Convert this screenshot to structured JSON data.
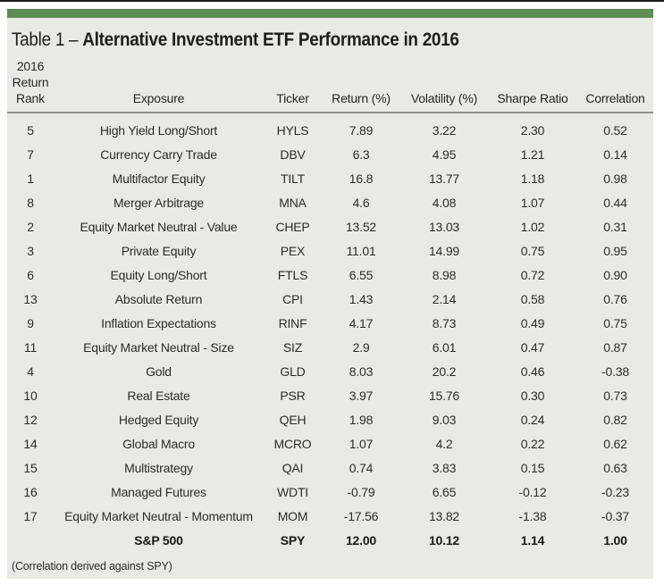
{
  "title": {
    "label": "Table 1 – ",
    "main": "Alternative Investment ETF Performance in 2016"
  },
  "header": {
    "rank_lines": [
      "2016",
      "Return",
      "Rank"
    ],
    "cols": [
      "Exposure",
      "Ticker",
      "Return (%)",
      "Volatility (%)",
      "Sharpe Ratio",
      "Correlation"
    ]
  },
  "chart_data": {
    "type": "table",
    "title": "Table 1 – Alternative Investment ETF Performance in 2016",
    "columns": [
      "2016 Return Rank",
      "Exposure",
      "Ticker",
      "Return (%)",
      "Volatility (%)",
      "Sharpe Ratio",
      "Correlation"
    ],
    "rows": [
      [
        "5",
        "High Yield Long/Short",
        "HYLS",
        "7.89",
        "3.22",
        "2.30",
        "0.52"
      ],
      [
        "7",
        "Currency Carry Trade",
        "DBV",
        "6.3",
        "4.95",
        "1.21",
        "0.14"
      ],
      [
        "1",
        "Multifactor Equity",
        "TILT",
        "16.8",
        "13.77",
        "1.18",
        "0.98"
      ],
      [
        "8",
        "Merger Arbitrage",
        "MNA",
        "4.6",
        "4.08",
        "1.07",
        "0.44"
      ],
      [
        "2",
        "Equity Market Neutral - Value",
        "CHEP",
        "13.52",
        "13.03",
        "1.02",
        "0.31"
      ],
      [
        "3",
        "Private Equity",
        "PEX",
        "11.01",
        "14.99",
        "0.75",
        "0.95"
      ],
      [
        "6",
        "Equity Long/Short",
        "FTLS",
        "6.55",
        "8.98",
        "0.72",
        "0.90"
      ],
      [
        "13",
        "Absolute Return",
        "CPI",
        "1.43",
        "2.14",
        "0.58",
        "0.76"
      ],
      [
        "9",
        "Inflation Expectations",
        "RINF",
        "4.17",
        "8.73",
        "0.49",
        "0.75"
      ],
      [
        "11",
        "Equity Market Neutral - Size",
        "SIZ",
        "2.9",
        "6.01",
        "0.47",
        "0.87"
      ],
      [
        "4",
        "Gold",
        "GLD",
        "8.03",
        "20.2",
        "0.46",
        "-0.38"
      ],
      [
        "10",
        "Real Estate",
        "PSR",
        "3.97",
        "15.76",
        "0.30",
        "0.73"
      ],
      [
        "12",
        "Hedged Equity",
        "QEH",
        "1.98",
        "9.03",
        "0.24",
        "0.82"
      ],
      [
        "14",
        "Global Macro",
        "MCRO",
        "1.07",
        "4.2",
        "0.22",
        "0.62"
      ],
      [
        "15",
        "Multistrategy",
        "QAI",
        "0.74",
        "3.83",
        "0.15",
        "0.63"
      ],
      [
        "16",
        "Managed Futures",
        "WDTI",
        "-0.79",
        "6.65",
        "-0.12",
        "-0.23"
      ],
      [
        "17",
        "Equity Market Neutral - Momentum",
        "MOM",
        "-17.56",
        "13.82",
        "-1.38",
        "-0.37"
      ]
    ],
    "summary_row": [
      "",
      "S&P 500",
      "SPY",
      "12.00",
      "10.12",
      "1.14",
      "1.00"
    ],
    "footnote": "(Correlation derived against SPY)"
  },
  "footnote": "(Correlation derived against SPY)",
  "colors": {
    "accent_green": "#5e8c55",
    "panel_bg": "#e9eae3",
    "divider_gray": "#8e928a",
    "top_line": "#1a1a1a",
    "text": "#2c2c2a"
  }
}
